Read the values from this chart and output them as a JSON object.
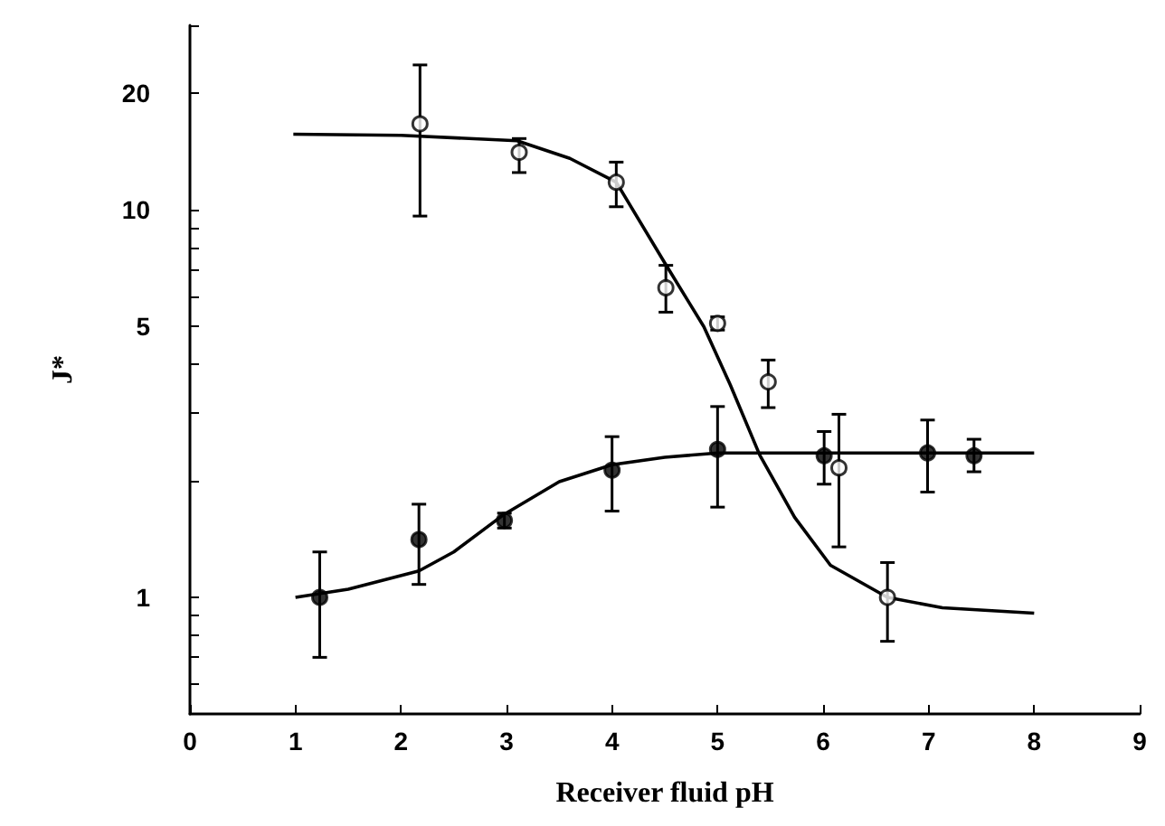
{
  "chart_data": {
    "type": "scatter",
    "xlabel": "Receiver fluid pH",
    "ylabel": "J*",
    "log": "y",
    "grid": false,
    "xlim": [
      0,
      9
    ],
    "xticks": [
      0,
      1,
      2,
      3,
      4,
      5,
      6,
      7,
      8,
      9
    ],
    "ylim": [
      0.5,
      30
    ],
    "yticks": [
      {
        "value": 0.6,
        "label": null
      },
      {
        "value": 0.7,
        "label": null
      },
      {
        "value": 0.8,
        "label": null
      },
      {
        "value": 0.9,
        "label": null
      },
      1,
      {
        "value": 2,
        "label": null
      },
      {
        "value": 3,
        "label": null
      },
      {
        "value": 4,
        "label": null
      },
      5,
      {
        "value": 6,
        "label": null
      },
      {
        "value": 7,
        "label": null
      },
      {
        "value": 8,
        "label": null
      },
      {
        "value": 9,
        "label": null
      },
      10,
      20,
      {
        "value": 30,
        "label": null
      }
    ],
    "series": [
      {
        "marker": "circle",
        "color": "#ffffff",
        "x": [
          2.18,
          3.12,
          4.04,
          4.51,
          5.0,
          5.48,
          6.15,
          6.61
        ],
        "values": [
          16.7,
          14.1,
          11.8,
          6.3,
          5.1,
          3.6,
          2.16,
          1.0
        ],
        "errors": [
          [
            9.65,
            23.7
          ],
          [
            12.5,
            15.3
          ],
          [
            10.2,
            13.3
          ],
          [
            5.45,
            7.2
          ],
          [
            4.9,
            5.3
          ],
          [
            3.09,
            4.1
          ],
          [
            1.35,
            2.97
          ],
          [
            0.77,
            1.23
          ]
        ]
      },
      {
        "marker": "circle",
        "color": "#000000",
        "x": [
          1.23,
          2.17,
          2.98,
          4.0,
          5.0,
          6.01,
          6.99,
          7.43
        ],
        "values": [
          1.0,
          1.41,
          1.58,
          2.13,
          2.41,
          2.32,
          2.36,
          2.32
        ],
        "errors": [
          [
            0.7,
            1.31
          ],
          [
            1.08,
            1.74
          ],
          [
            1.51,
            1.65
          ],
          [
            1.67,
            2.6
          ],
          [
            1.71,
            3.11
          ],
          [
            1.96,
            2.68
          ],
          [
            1.87,
            2.87
          ],
          [
            2.11,
            2.56
          ]
        ]
      },
      {
        "type": "line",
        "marker": "none",
        "color": "#000000",
        "x": [
          0.98,
          2.0,
          3.1,
          3.6,
          4.04,
          4.5,
          4.87,
          5.12,
          5.4,
          5.73,
          6.07,
          6.61,
          7.13,
          8.0
        ],
        "values": [
          15.7,
          15.6,
          15.1,
          13.6,
          11.8,
          7.3,
          5.0,
          3.54,
          2.33,
          1.61,
          1.21,
          1.0,
          0.94,
          0.91
        ]
      },
      {
        "type": "line",
        "marker": "none",
        "color": "#000000",
        "x": [
          1.0,
          1.5,
          2.17,
          2.5,
          2.98,
          3.5,
          4.0,
          4.5,
          5.0,
          6.0,
          7.0,
          8.0
        ],
        "values": [
          1.0,
          1.05,
          1.17,
          1.31,
          1.64,
          1.99,
          2.2,
          2.3,
          2.36,
          2.36,
          2.36,
          2.36
        ]
      }
    ]
  }
}
